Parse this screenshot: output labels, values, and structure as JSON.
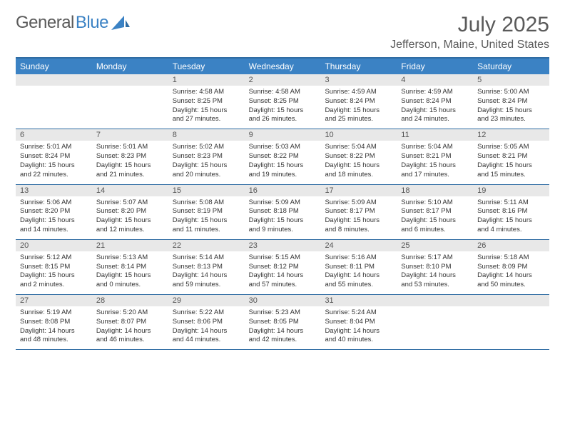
{
  "brand": {
    "part1": "General",
    "part2": "Blue"
  },
  "title": "July 2025",
  "location": "Jefferson, Maine, United States",
  "colors": {
    "header_bg": "#3b82c4",
    "header_text": "#ffffff",
    "border": "#2f6ca3",
    "daynum_bg": "#e8e8e8",
    "text": "#333333",
    "muted": "#5a5a5a"
  },
  "day_names": [
    "Sunday",
    "Monday",
    "Tuesday",
    "Wednesday",
    "Thursday",
    "Friday",
    "Saturday"
  ],
  "weeks": [
    {
      "nums": [
        "",
        "",
        "1",
        "2",
        "3",
        "4",
        "5"
      ],
      "cells": [
        null,
        null,
        {
          "sunrise": "Sunrise: 4:58 AM",
          "sunset": "Sunset: 8:25 PM",
          "daylight": "Daylight: 15 hours and 27 minutes."
        },
        {
          "sunrise": "Sunrise: 4:58 AM",
          "sunset": "Sunset: 8:25 PM",
          "daylight": "Daylight: 15 hours and 26 minutes."
        },
        {
          "sunrise": "Sunrise: 4:59 AM",
          "sunset": "Sunset: 8:24 PM",
          "daylight": "Daylight: 15 hours and 25 minutes."
        },
        {
          "sunrise": "Sunrise: 4:59 AM",
          "sunset": "Sunset: 8:24 PM",
          "daylight": "Daylight: 15 hours and 24 minutes."
        },
        {
          "sunrise": "Sunrise: 5:00 AM",
          "sunset": "Sunset: 8:24 PM",
          "daylight": "Daylight: 15 hours and 23 minutes."
        }
      ]
    },
    {
      "nums": [
        "6",
        "7",
        "8",
        "9",
        "10",
        "11",
        "12"
      ],
      "cells": [
        {
          "sunrise": "Sunrise: 5:01 AM",
          "sunset": "Sunset: 8:24 PM",
          "daylight": "Daylight: 15 hours and 22 minutes."
        },
        {
          "sunrise": "Sunrise: 5:01 AM",
          "sunset": "Sunset: 8:23 PM",
          "daylight": "Daylight: 15 hours and 21 minutes."
        },
        {
          "sunrise": "Sunrise: 5:02 AM",
          "sunset": "Sunset: 8:23 PM",
          "daylight": "Daylight: 15 hours and 20 minutes."
        },
        {
          "sunrise": "Sunrise: 5:03 AM",
          "sunset": "Sunset: 8:22 PM",
          "daylight": "Daylight: 15 hours and 19 minutes."
        },
        {
          "sunrise": "Sunrise: 5:04 AM",
          "sunset": "Sunset: 8:22 PM",
          "daylight": "Daylight: 15 hours and 18 minutes."
        },
        {
          "sunrise": "Sunrise: 5:04 AM",
          "sunset": "Sunset: 8:21 PM",
          "daylight": "Daylight: 15 hours and 17 minutes."
        },
        {
          "sunrise": "Sunrise: 5:05 AM",
          "sunset": "Sunset: 8:21 PM",
          "daylight": "Daylight: 15 hours and 15 minutes."
        }
      ]
    },
    {
      "nums": [
        "13",
        "14",
        "15",
        "16",
        "17",
        "18",
        "19"
      ],
      "cells": [
        {
          "sunrise": "Sunrise: 5:06 AM",
          "sunset": "Sunset: 8:20 PM",
          "daylight": "Daylight: 15 hours and 14 minutes."
        },
        {
          "sunrise": "Sunrise: 5:07 AM",
          "sunset": "Sunset: 8:20 PM",
          "daylight": "Daylight: 15 hours and 12 minutes."
        },
        {
          "sunrise": "Sunrise: 5:08 AM",
          "sunset": "Sunset: 8:19 PM",
          "daylight": "Daylight: 15 hours and 11 minutes."
        },
        {
          "sunrise": "Sunrise: 5:09 AM",
          "sunset": "Sunset: 8:18 PM",
          "daylight": "Daylight: 15 hours and 9 minutes."
        },
        {
          "sunrise": "Sunrise: 5:09 AM",
          "sunset": "Sunset: 8:17 PM",
          "daylight": "Daylight: 15 hours and 8 minutes."
        },
        {
          "sunrise": "Sunrise: 5:10 AM",
          "sunset": "Sunset: 8:17 PM",
          "daylight": "Daylight: 15 hours and 6 minutes."
        },
        {
          "sunrise": "Sunrise: 5:11 AM",
          "sunset": "Sunset: 8:16 PM",
          "daylight": "Daylight: 15 hours and 4 minutes."
        }
      ]
    },
    {
      "nums": [
        "20",
        "21",
        "22",
        "23",
        "24",
        "25",
        "26"
      ],
      "cells": [
        {
          "sunrise": "Sunrise: 5:12 AM",
          "sunset": "Sunset: 8:15 PM",
          "daylight": "Daylight: 15 hours and 2 minutes."
        },
        {
          "sunrise": "Sunrise: 5:13 AM",
          "sunset": "Sunset: 8:14 PM",
          "daylight": "Daylight: 15 hours and 0 minutes."
        },
        {
          "sunrise": "Sunrise: 5:14 AM",
          "sunset": "Sunset: 8:13 PM",
          "daylight": "Daylight: 14 hours and 59 minutes."
        },
        {
          "sunrise": "Sunrise: 5:15 AM",
          "sunset": "Sunset: 8:12 PM",
          "daylight": "Daylight: 14 hours and 57 minutes."
        },
        {
          "sunrise": "Sunrise: 5:16 AM",
          "sunset": "Sunset: 8:11 PM",
          "daylight": "Daylight: 14 hours and 55 minutes."
        },
        {
          "sunrise": "Sunrise: 5:17 AM",
          "sunset": "Sunset: 8:10 PM",
          "daylight": "Daylight: 14 hours and 53 minutes."
        },
        {
          "sunrise": "Sunrise: 5:18 AM",
          "sunset": "Sunset: 8:09 PM",
          "daylight": "Daylight: 14 hours and 50 minutes."
        }
      ]
    },
    {
      "nums": [
        "27",
        "28",
        "29",
        "30",
        "31",
        "",
        ""
      ],
      "cells": [
        {
          "sunrise": "Sunrise: 5:19 AM",
          "sunset": "Sunset: 8:08 PM",
          "daylight": "Daylight: 14 hours and 48 minutes."
        },
        {
          "sunrise": "Sunrise: 5:20 AM",
          "sunset": "Sunset: 8:07 PM",
          "daylight": "Daylight: 14 hours and 46 minutes."
        },
        {
          "sunrise": "Sunrise: 5:22 AM",
          "sunset": "Sunset: 8:06 PM",
          "daylight": "Daylight: 14 hours and 44 minutes."
        },
        {
          "sunrise": "Sunrise: 5:23 AM",
          "sunset": "Sunset: 8:05 PM",
          "daylight": "Daylight: 14 hours and 42 minutes."
        },
        {
          "sunrise": "Sunrise: 5:24 AM",
          "sunset": "Sunset: 8:04 PM",
          "daylight": "Daylight: 14 hours and 40 minutes."
        },
        null,
        null
      ]
    }
  ]
}
